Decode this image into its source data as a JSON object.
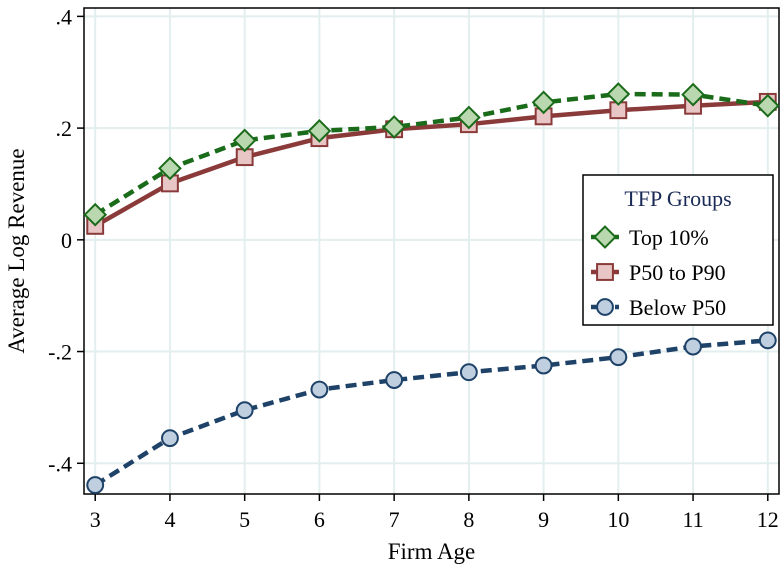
{
  "chart_data": {
    "type": "line",
    "title": "",
    "xlabel": "Firm Age",
    "ylabel": "Average Log Revenue",
    "xlim": [
      2.85,
      12.15
    ],
    "ylim": [
      -0.455,
      0.415
    ],
    "x": [
      3,
      4,
      5,
      6,
      7,
      8,
      9,
      10,
      11,
      12
    ],
    "x_tick_labels": [
      "3",
      "4",
      "5",
      "6",
      "7",
      "8",
      "9",
      "10",
      "11",
      "12"
    ],
    "y_ticks": [
      -0.4,
      -0.2,
      0,
      0.2,
      0.4
    ],
    "y_tick_labels": [
      "-.4",
      "-.2",
      "0",
      ".2",
      ".4"
    ],
    "grid": true,
    "legend": {
      "title": "TFP Groups",
      "placement": "right"
    },
    "series": [
      {
        "name": "Top 10%",
        "values": [
          0.045,
          0.128,
          0.178,
          0.195,
          0.202,
          0.219,
          0.246,
          0.261,
          0.26,
          0.24
        ],
        "color": "#1a6b1a",
        "fill": "#b9d8b0",
        "marker": "diamond",
        "dash": "dashed"
      },
      {
        "name": "P50 to P90",
        "values": [
          0.025,
          0.101,
          0.148,
          0.182,
          0.198,
          0.207,
          0.221,
          0.232,
          0.24,
          0.247
        ],
        "color": "#8b3a3a",
        "fill": "#e8c6c6",
        "marker": "square",
        "dash": "solid"
      },
      {
        "name": "Below P50",
        "values": [
          -0.439,
          -0.355,
          -0.305,
          -0.268,
          -0.251,
          -0.237,
          -0.225,
          -0.21,
          -0.191,
          -0.18
        ],
        "color": "#1f4268",
        "fill": "#bfcfe0",
        "marker": "circle",
        "dash": "dashed"
      }
    ]
  }
}
